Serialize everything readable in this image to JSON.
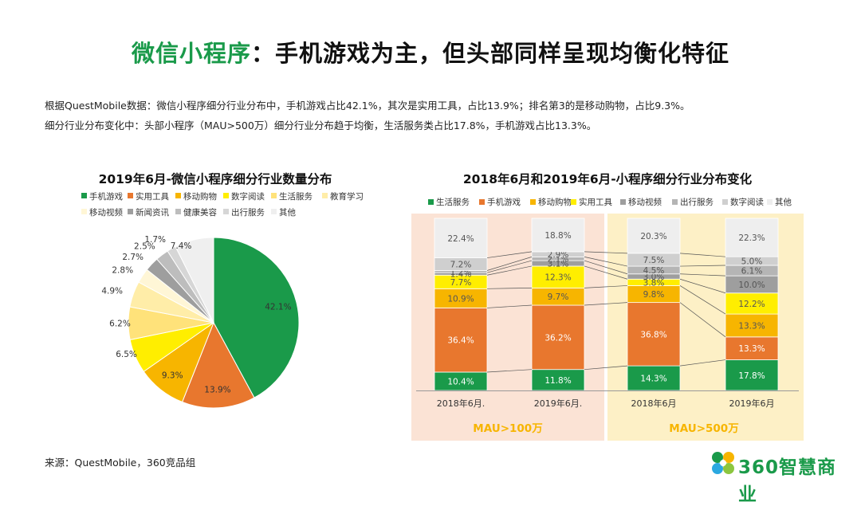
{
  "page": {
    "title_highlight": "微信小程序",
    "title_rest": "：手机游戏为主，但头部同样呈现均衡化特征",
    "desc_line1": "根据QuestMobile数据：微信小程序细分行业分布中，手机游戏占比42.1%，其次是实用工具，占比13.9%；排名第3的是移动购物，占比9.3%。",
    "desc_line2": "细分行业分布变化中：头部小程序（MAU>500万）细分行业分布趋于均衡，生活服务类占比17.8%，手机游戏占比13.3%。",
    "source": "来源：QuestMobile，360竞品组",
    "logo_text": "360智慧商业"
  },
  "colors": {
    "green": "#1a9a4a",
    "orange": "#e8772e",
    "amber": "#f7b500",
    "yellow": "#ffee00",
    "gray": "#9e9e9e",
    "silver": "#c6c6c6",
    "lightgray": "#dedede",
    "white": "#f2f2f2",
    "panel_left": "#fbe3d5",
    "panel_right": "#fdf0c6",
    "panel_label": "#f7b500"
  },
  "chart_data": [
    {
      "type": "pie",
      "title": "2019年6月-微信小程序细分行业数量分布",
      "legend": [
        "手机游戏",
        "实用工具",
        "移动购物",
        "数字阅读",
        "生活服务",
        "教育学习",
        "移动视频",
        "新闻资讯",
        "健康美容",
        "出行服务",
        "其他"
      ],
      "legend_colors": [
        "#1a9a4a",
        "#e8772e",
        "#f7b500",
        "#ffee00",
        "#ffe27a",
        "#ffeda8",
        "#fff6d6",
        "#9e9e9e",
        "#bdbdbd",
        "#d6d6d6",
        "#efefef"
      ],
      "slices": [
        {
          "label": "手机游戏",
          "value": 42.1,
          "text": "42.1%"
        },
        {
          "label": "实用工具",
          "value": 13.9,
          "text": "13.9%"
        },
        {
          "label": "移动购物",
          "value": 9.3,
          "text": "9.3%"
        },
        {
          "label": "数字阅读",
          "value": 6.5,
          "text": "6.5%"
        },
        {
          "label": "生活服务",
          "value": 6.2,
          "text": "6.2%"
        },
        {
          "label": "教育学习",
          "value": 4.9,
          "text": "4.9%"
        },
        {
          "label": "移动视频",
          "value": 2.8,
          "text": "2.8%"
        },
        {
          "label": "新闻资讯",
          "value": 2.7,
          "text": "2.7%"
        },
        {
          "label": "健康美容",
          "value": 2.5,
          "text": "2.5%"
        },
        {
          "label": "出行服务",
          "value": 1.7,
          "text": "1.7%"
        },
        {
          "label": "其他",
          "value": 7.4,
          "text": "7.4%"
        }
      ]
    },
    {
      "type": "bar",
      "stacked": true,
      "title": "2018年6月和2019年6月-小程序细分行业分布变化",
      "categories": [
        "2018年6月.",
        "2019年6月.",
        "2018年6月",
        "2019年6月"
      ],
      "groups": [
        "MAU>100万",
        "MAU>500万"
      ],
      "series": [
        {
          "name": "生活服务",
          "color": "#1a9a4a",
          "values": [
            10.4,
            11.8,
            14.3,
            17.8
          ],
          "labels": [
            "10.4%",
            "11.8%",
            "14.3%",
            "17.8%"
          ]
        },
        {
          "name": "手机游戏",
          "color": "#e8772e",
          "values": [
            36.4,
            36.2,
            36.8,
            13.3
          ],
          "labels": [
            "36.4%",
            "36.2%",
            "36.8%",
            "13.3%"
          ]
        },
        {
          "name": "移动购物",
          "color": "#f7b500",
          "values": [
            10.9,
            9.7,
            9.8,
            13.3
          ],
          "labels": [
            "10.9%",
            "9.7%",
            "9.8%",
            "13.3%"
          ]
        },
        {
          "name": "实用工具",
          "color": "#ffee00",
          "values": [
            7.7,
            12.3,
            3.8,
            12.2
          ],
          "labels": [
            "7.7%",
            "12.3%",
            "3.8%",
            "12.2%"
          ]
        },
        {
          "name": "移动视频",
          "color": "#9e9e9e",
          "values": [
            1.4,
            3.1,
            3.0,
            10.0
          ],
          "labels": [
            "1.4%",
            "3.1%",
            "3.0%",
            "10.0%"
          ]
        },
        {
          "name": "出行服务",
          "color": "#b5b5b5",
          "values": [
            1.2,
            2.1,
            4.5,
            6.1
          ],
          "labels": [
            "1.2%",
            "2.1%",
            "4.5%",
            "6.1%"
          ]
        },
        {
          "name": "数字阅读",
          "color": "#cfcfcf",
          "values": [
            7.2,
            2.9,
            7.5,
            5.0
          ],
          "labels": [
            "7.2%",
            "2.9%",
            "7.5%",
            "5.0%"
          ]
        },
        {
          "name": "其他",
          "color": "#eeeeee",
          "values": [
            22.4,
            18.8,
            20.3,
            22.3
          ],
          "labels": [
            "22.4%",
            "18.8%",
            "20.3%",
            "22.3%"
          ]
        }
      ]
    }
  ]
}
